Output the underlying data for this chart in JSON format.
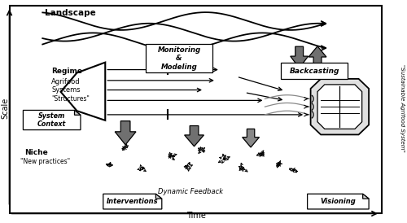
{
  "fig_width": 5.0,
  "fig_height": 2.74,
  "dpi": 100,
  "bg_color": "#ffffff",
  "labels": {
    "landscape": "Landscape",
    "regime": "Regime",
    "agrifood": "Agrifood\nSystems\n\"Structures\"",
    "niche": "Niche",
    "new_practices": "\"New practices\"",
    "scale": "Scale",
    "time": "Time",
    "monitoring": "Monitoring\n&\nModeling",
    "backcasting": "Backcasting",
    "system_context": "System\nContext",
    "interventions": "Interventions",
    "dynamic_feedback": "Dynamic Feedback",
    "visioning": "Visioning",
    "sustainable": "\"Sustainable Agrifood System\""
  },
  "colors": {
    "gray_arrow": "#707070",
    "black": "#000000",
    "white": "#ffffff",
    "light_gray": "#cccccc",
    "mid_gray": "#888888"
  }
}
